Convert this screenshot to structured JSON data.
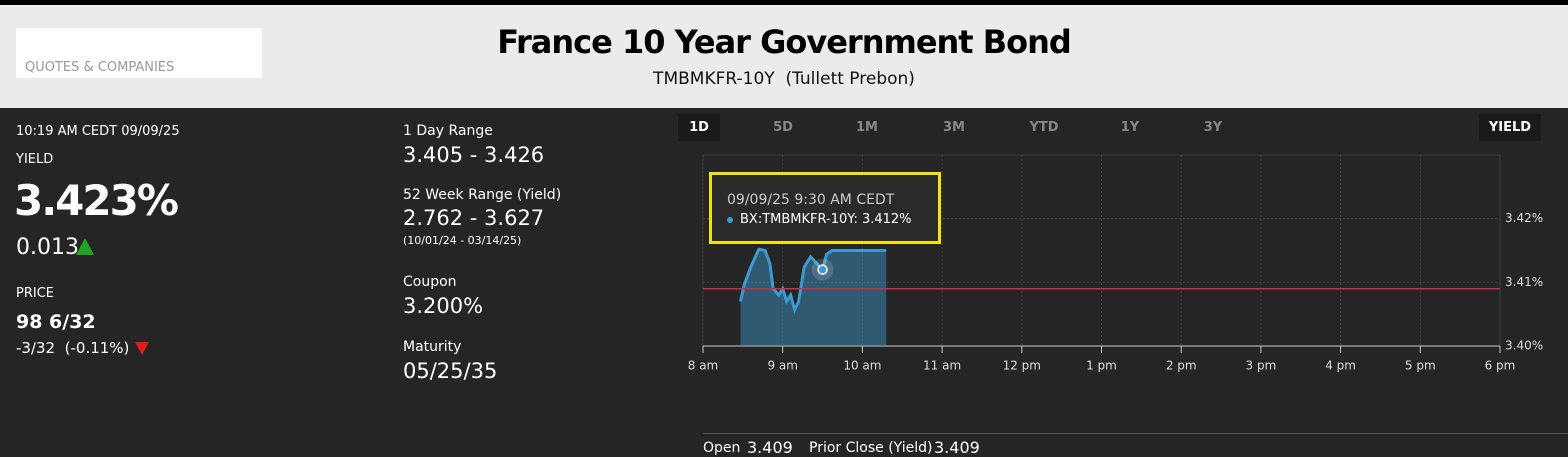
{
  "header": {
    "search_label": "QUOTES & COMPANIES",
    "title": "France 10 Year Government Bond",
    "subtitle": "TMBMKFR-10Y  (Tullett Prebon)"
  },
  "quote": {
    "timestamp": "10:19 AM CEDT 09/09/25",
    "yield_label": "YIELD",
    "yield": "3.423%",
    "change": "0.013",
    "price_label": "PRICE",
    "price": "98 6/32",
    "price_change": "-3/32  (-0.11%)"
  },
  "stats": [
    {
      "label": "1 Day Range",
      "value": "3.405 - 3.426"
    },
    {
      "label": "52 Week Range (Yield)",
      "value": "2.762 - 3.627",
      "note": "(10/01/24 - 03/14/25)"
    },
    {
      "label": "Coupon",
      "value": "3.200%"
    },
    {
      "label": "Maturity",
      "value": "05/25/35"
    }
  ],
  "tabs": [
    "1D",
    "5D",
    "1M",
    "3M",
    "YTD",
    "1Y",
    "3Y"
  ],
  "active_tab": 0,
  "mode_button": "YIELD",
  "chart_data": {
    "type": "area",
    "x": [
      8.47,
      8.52,
      8.6,
      8.7,
      8.78,
      8.84,
      8.88,
      8.95,
      9.0,
      9.05,
      9.1,
      9.15,
      9.2,
      9.27,
      9.35,
      9.5,
      9.55,
      9.62,
      10.0,
      10.3
    ],
    "values": [
      3.407,
      3.4097,
      3.4124,
      3.4152,
      3.415,
      3.4129,
      3.409,
      3.408,
      3.409,
      3.407,
      3.408,
      3.4057,
      3.407,
      3.4124,
      3.414,
      3.412,
      3.4144,
      3.415,
      3.415,
      3.415
    ],
    "color": "#3d9ad1",
    "xlim": [
      8,
      18
    ],
    "xticks": [
      {
        "value": 8,
        "label": "8 am"
      },
      {
        "value": 9,
        "label": "9 am"
      },
      {
        "value": 10,
        "label": "10 am"
      },
      {
        "value": 11,
        "label": "11 am"
      },
      {
        "value": 12,
        "label": "12 pm"
      },
      {
        "value": 13,
        "label": "1 pm"
      },
      {
        "value": 14,
        "label": "2 pm"
      },
      {
        "value": 15,
        "label": "3 pm"
      },
      {
        "value": 16,
        "label": "4 pm"
      },
      {
        "value": 17,
        "label": "5 pm"
      },
      {
        "value": 18,
        "label": "6 pm"
      }
    ],
    "ylim": [
      3.4,
      3.43
    ],
    "yticks": [
      {
        "value": 3.4,
        "label": "3.40%"
      },
      {
        "value": 3.41,
        "label": "3.41%"
      },
      {
        "value": 3.42,
        "label": "3.42%"
      }
    ],
    "grid": true,
    "reference_line": {
      "value": 3.409,
      "color": "#c0334d"
    },
    "tooltip": {
      "point": 15,
      "title": "09/09/25 9:30 AM CEDT",
      "text": "BX:TMBMKFR-10Y: 3.412%"
    }
  },
  "footer": {
    "open_label": "Open",
    "open": "3.409",
    "prior_close_label": "Prior Close (Yield)",
    "prior_close": "3.409"
  }
}
